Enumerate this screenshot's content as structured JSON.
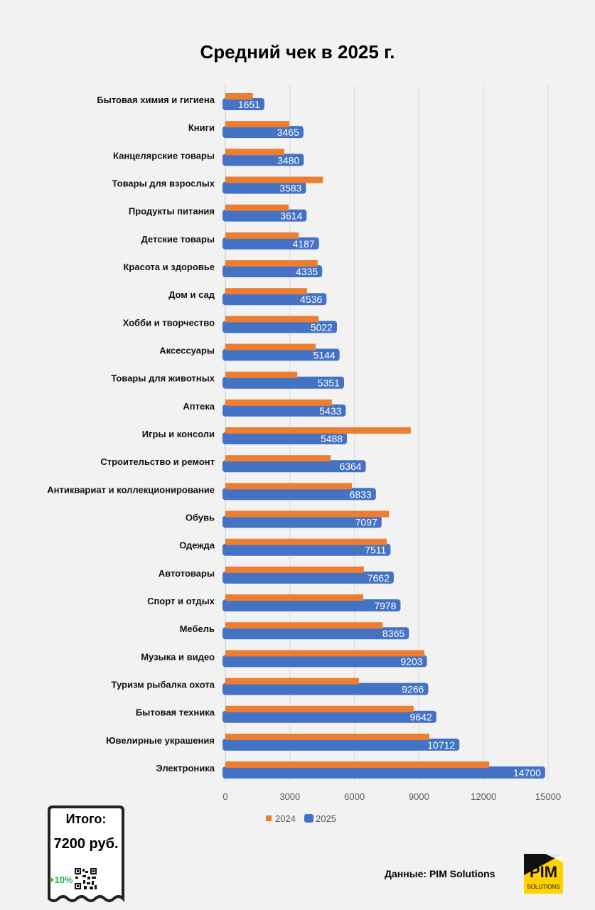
{
  "chart_data": {
    "type": "bar",
    "orientation": "horizontal",
    "title": "Средний чек в 2025 г.",
    "categories": [
      "Бытовая химия и гигиена",
      "Книги",
      "Канцелярские товары",
      "Товары для взрослых",
      "Продукты питания",
      "Детские товары",
      "Красота и здоровье",
      "Дом и сад",
      "Хобби и творчество",
      "Аксессуары",
      "Товары для животных",
      "Аптека",
      "Игры и консоли",
      "Строительство и ремонт",
      "Антиквариат и коллекционирование",
      "Обувь",
      "Одежда",
      "Автотовары",
      "Спорт и отдых",
      "Мебель",
      "Музыка и видео",
      "Туризм рыбалка охота",
      "Бытовая техника",
      "Ювелирные украшения",
      "Электроника"
    ],
    "series": [
      {
        "name": "2024",
        "color": "#ed7d31",
        "values": [
          1280,
          2970,
          2740,
          4530,
          2940,
          3400,
          4290,
          3800,
          4330,
          4200,
          3340,
          4950,
          8620,
          4890,
          5880,
          7600,
          7500,
          6440,
          6410,
          7310,
          9250,
          6210,
          8750,
          9480,
          12260
        ]
      },
      {
        "name": "2025",
        "color": "#4472c4",
        "values": [
          1651,
          3465,
          3480,
          3583,
          3614,
          4187,
          4335,
          4536,
          5022,
          5144,
          5351,
          5433,
          5488,
          6364,
          6833,
          7097,
          7511,
          7662,
          7978,
          8365,
          9203,
          9266,
          9642,
          10712,
          14700
        ],
        "data_labels": true
      }
    ],
    "xlim": [
      0,
      15000
    ],
    "xticks": [
      "0",
      "3000",
      "6000",
      "9000",
      "12000",
      "15000"
    ],
    "grid": true,
    "legend": "bottom"
  },
  "receipt": {
    "label": "Итого:",
    "value": "7200 руб.",
    "change": "+10%"
  },
  "source": "Данные: PIM Solutions",
  "logo": {
    "text": "PIM",
    "subtext": "SOLUTIONS",
    "color": "#ffd200"
  }
}
